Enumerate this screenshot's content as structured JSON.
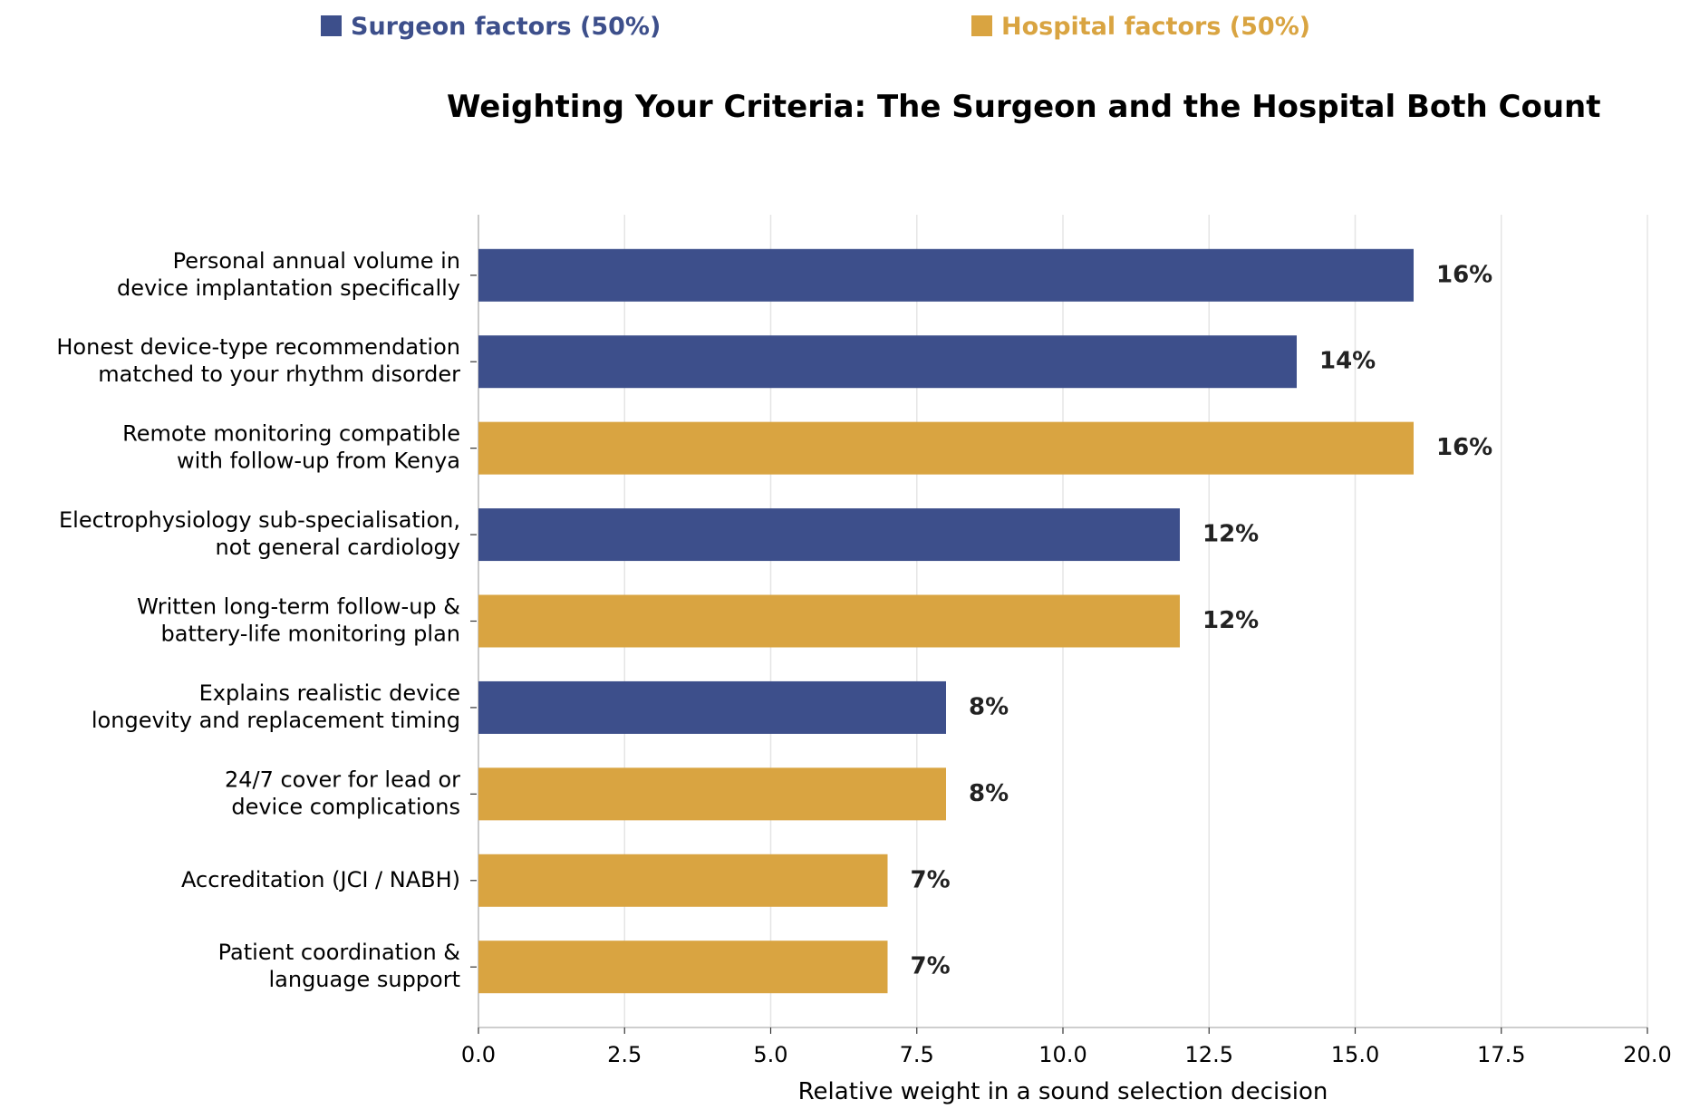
{
  "legend": {
    "surgeon": {
      "label": "Surgeon factors (50%)",
      "color": "#3d4f8b"
    },
    "hospital": {
      "label": "Hospital factors (50%)",
      "color": "#d9a441"
    }
  },
  "chart_data": {
    "type": "bar",
    "orientation": "horizontal",
    "title": "Weighting Your Criteria: The Surgeon and the Hospital Both Count",
    "xlabel": "Relative weight in a sound selection decision",
    "ylabel": "",
    "xlim": [
      0,
      20
    ],
    "xticks": [
      0.0,
      2.5,
      5.0,
      7.5,
      10.0,
      12.5,
      15.0,
      17.5,
      20.0
    ],
    "xtick_labels": [
      "0.0",
      "2.5",
      "5.0",
      "7.5",
      "10.0",
      "12.5",
      "15.0",
      "17.5",
      "20.0"
    ],
    "grid": "vertical",
    "legend_position": "top",
    "categories": [
      [
        "Personal annual volume in",
        "device implantation specifically"
      ],
      [
        "Honest device-type recommendation",
        "matched to your rhythm disorder"
      ],
      [
        "Remote monitoring compatible",
        "with follow-up from Kenya"
      ],
      [
        "Electrophysiology sub-specialisation,",
        "not general cardiology"
      ],
      [
        "Written long-term follow-up &",
        "battery-life monitoring plan"
      ],
      [
        "Explains realistic device",
        "longevity and replacement timing"
      ],
      [
        "24/7 cover for lead or",
        "device complications"
      ],
      [
        "Accreditation (JCI / NABH)"
      ],
      [
        "Patient coordination &",
        "language support"
      ]
    ],
    "values": [
      16,
      14,
      16,
      12,
      12,
      8,
      8,
      7,
      7
    ],
    "value_labels": [
      "16%",
      "14%",
      "16%",
      "12%",
      "12%",
      "8%",
      "8%",
      "7%",
      "7%"
    ],
    "groups": [
      "surgeon",
      "surgeon",
      "hospital",
      "surgeon",
      "hospital",
      "surgeon",
      "hospital",
      "hospital",
      "hospital"
    ]
  }
}
